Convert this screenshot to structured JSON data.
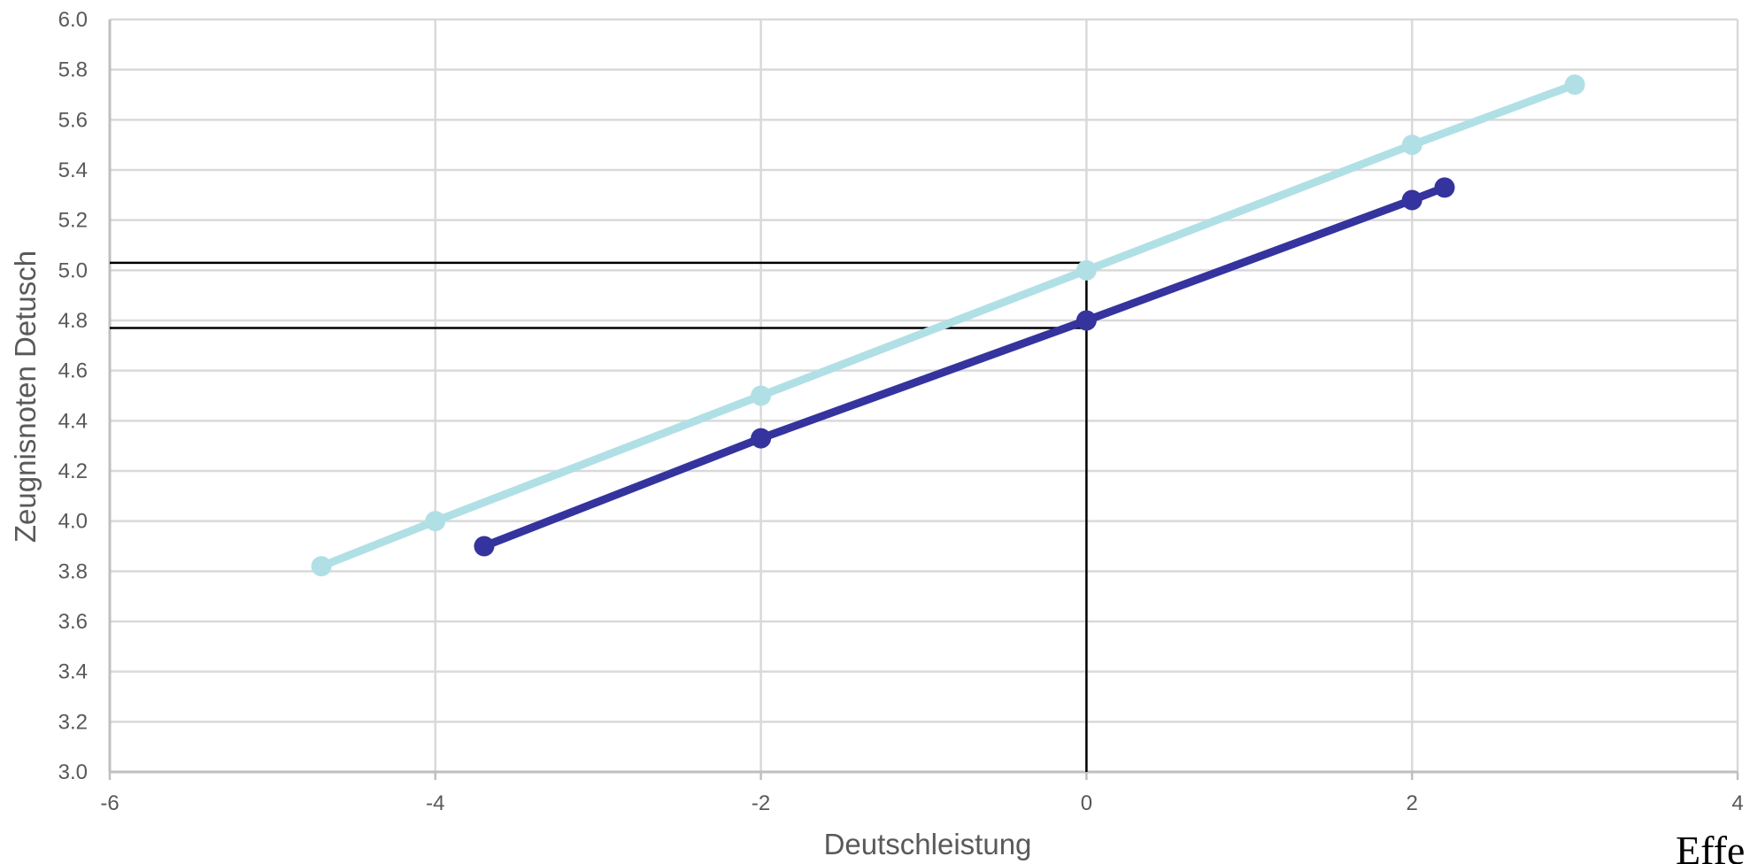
{
  "chart_data": {
    "type": "line",
    "title": "",
    "xlabel": "Deutschleistung",
    "ylabel": "Zeugnisnoten Detusch",
    "xlim": [
      -6,
      4
    ],
    "ylim": [
      3.0,
      6.0
    ],
    "x_ticks": [
      -6,
      -4,
      -2,
      0,
      2,
      4
    ],
    "x_tick_labels": [
      "-6",
      "-4",
      "-2",
      "0",
      "2",
      "4"
    ],
    "y_ticks": [
      3.0,
      3.2,
      3.4,
      3.6,
      3.8,
      4.0,
      4.2,
      4.4,
      4.6,
      4.8,
      5.0,
      5.2,
      5.4,
      5.6,
      5.8,
      6.0
    ],
    "y_tick_labels": [
      "3.0",
      "3.2",
      "3.4",
      "3.6",
      "3.8",
      "4.0",
      "4.2",
      "4.4",
      "4.6",
      "4.8",
      "5.0",
      "5.2",
      "5.4",
      "5.6",
      "5.8",
      "6.0"
    ],
    "grid": true,
    "legend": "none",
    "series": [
      {
        "color": "#b0e0e6",
        "points": [
          [
            -4.7,
            3.82
          ],
          [
            -4,
            4.0
          ],
          [
            -2,
            4.5
          ],
          [
            0,
            5.0
          ],
          [
            2,
            5.5
          ],
          [
            3,
            5.74
          ]
        ]
      },
      {
        "color": "#35339e",
        "points": [
          [
            -3.7,
            3.9
          ],
          [
            -2,
            4.33
          ],
          [
            0,
            4.8
          ],
          [
            2,
            5.28
          ],
          [
            2.2,
            5.33
          ]
        ]
      }
    ],
    "reference_lines": [
      {
        "type": "horizontal",
        "y": 5.03,
        "x_from": -6,
        "x_to": 0
      },
      {
        "type": "horizontal",
        "y": 4.77,
        "x_from": -6,
        "x_to": 0
      },
      {
        "type": "vertical",
        "x": 0,
        "y_from": 3.0,
        "y_to": 5.03
      }
    ]
  },
  "corner_text": "Effe"
}
